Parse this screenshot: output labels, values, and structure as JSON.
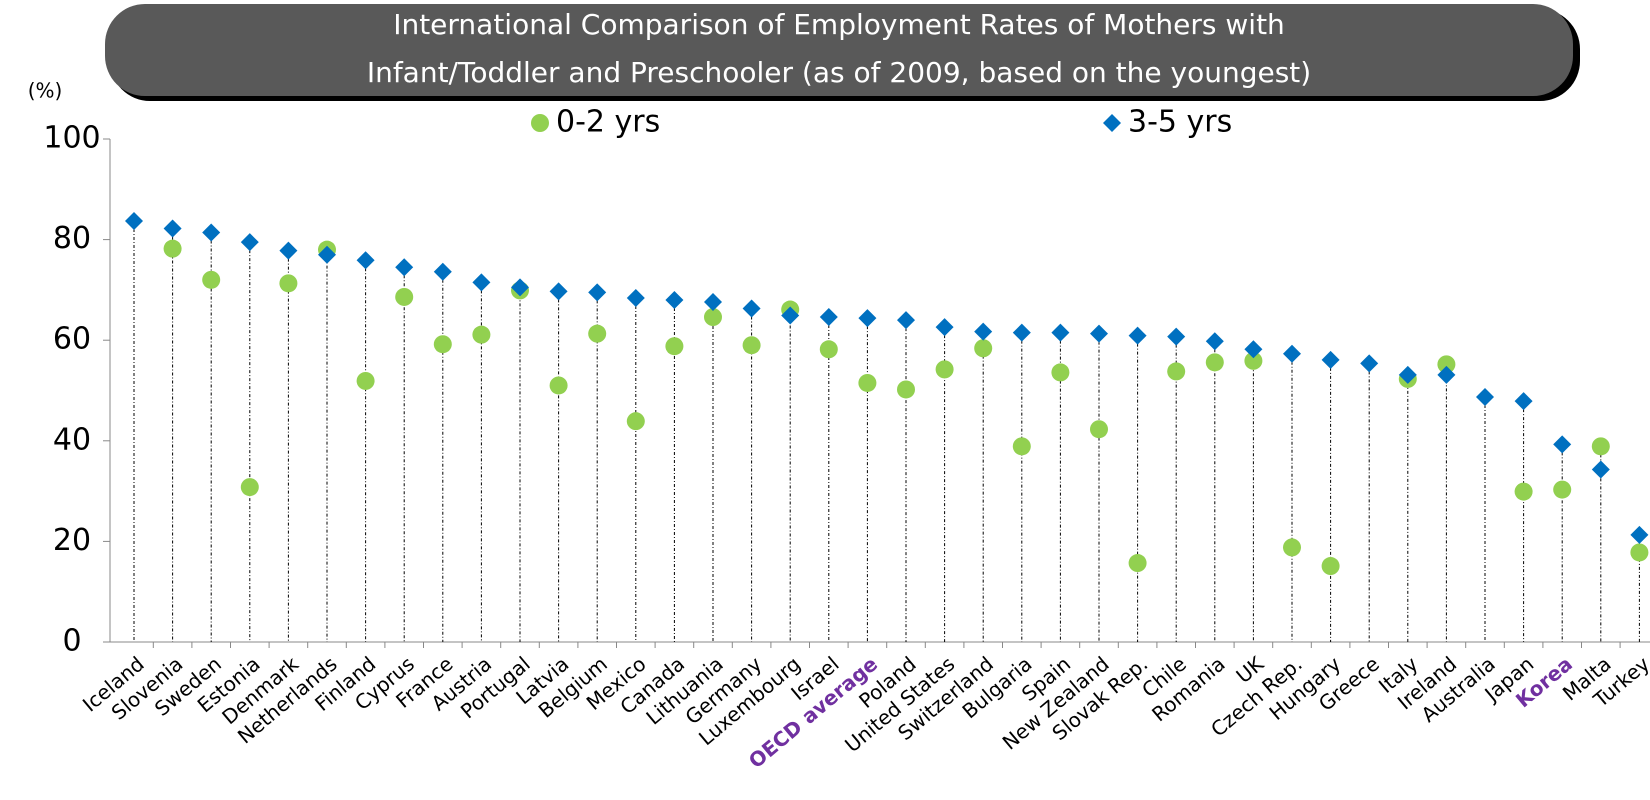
{
  "chart_data": {
    "type": "dot",
    "title": [
      "International Comparison of Employment Rates of Mothers with",
      "Infant/Toddler and Preschooler (as of 2009, based on the youngest)"
    ],
    "y_label": "(%)",
    "categories": [
      "Iceland",
      "Slovenia",
      "Sweden",
      "Estonia",
      "Denmark",
      "Netherlands",
      "Finland",
      "Cyprus",
      "France",
      "Austria",
      "Portugal",
      "Latvia",
      "Belgium",
      "Mexico",
      "Canada",
      "Lithuania",
      "Germany",
      "Luxembourg",
      "Israel",
      "OECD average",
      "Poland",
      "United States",
      "Switzerland",
      "Bulgaria",
      "Spain",
      "New Zealand",
      "Slovak Rep.",
      "Chile",
      "Romania",
      "UK",
      "Czech Rep.",
      "Hungary",
      "Greece",
      "Italy",
      "Ireland",
      "Australia",
      "Japan",
      "Korea",
      "Malta",
      "Turkey"
    ],
    "highlight": [
      19,
      37
    ],
    "highlight_color": "#7030a0",
    "series": [
      {
        "name": "0-2 yrs",
        "color": "#92d050",
        "marker": "circle",
        "values": [
          null,
          78.2,
          72.0,
          30.8,
          71.3,
          78.0,
          51.9,
          68.6,
          59.2,
          61.1,
          69.9,
          51.0,
          61.3,
          43.9,
          58.8,
          64.6,
          59.0,
          66.1,
          58.2,
          51.5,
          50.2,
          54.2,
          58.4,
          38.9,
          53.6,
          42.3,
          15.7,
          53.8,
          55.6,
          55.9,
          18.8,
          15.1,
          null,
          52.3,
          55.2,
          null,
          29.9,
          30.3,
          38.9,
          17.8
        ]
      },
      {
        "name": "3-5 yrs",
        "color": "#0070c0",
        "marker": "diamond",
        "values": [
          83.7,
          82.2,
          81.4,
          79.5,
          77.8,
          77.0,
          75.9,
          74.5,
          73.6,
          71.5,
          70.5,
          69.7,
          69.5,
          68.4,
          68.0,
          67.6,
          66.3,
          64.9,
          64.6,
          64.4,
          64.0,
          62.6,
          61.7,
          61.5,
          61.5,
          61.3,
          60.9,
          60.7,
          59.8,
          58.2,
          57.3,
          56.1,
          55.4,
          53.1,
          53.1,
          48.7,
          47.9,
          39.3,
          34.3,
          21.3
        ]
      }
    ],
    "ylim": [
      0,
      100
    ],
    "yticks": [
      0,
      20,
      40,
      60,
      80,
      100
    ],
    "drop_lines": true
  }
}
